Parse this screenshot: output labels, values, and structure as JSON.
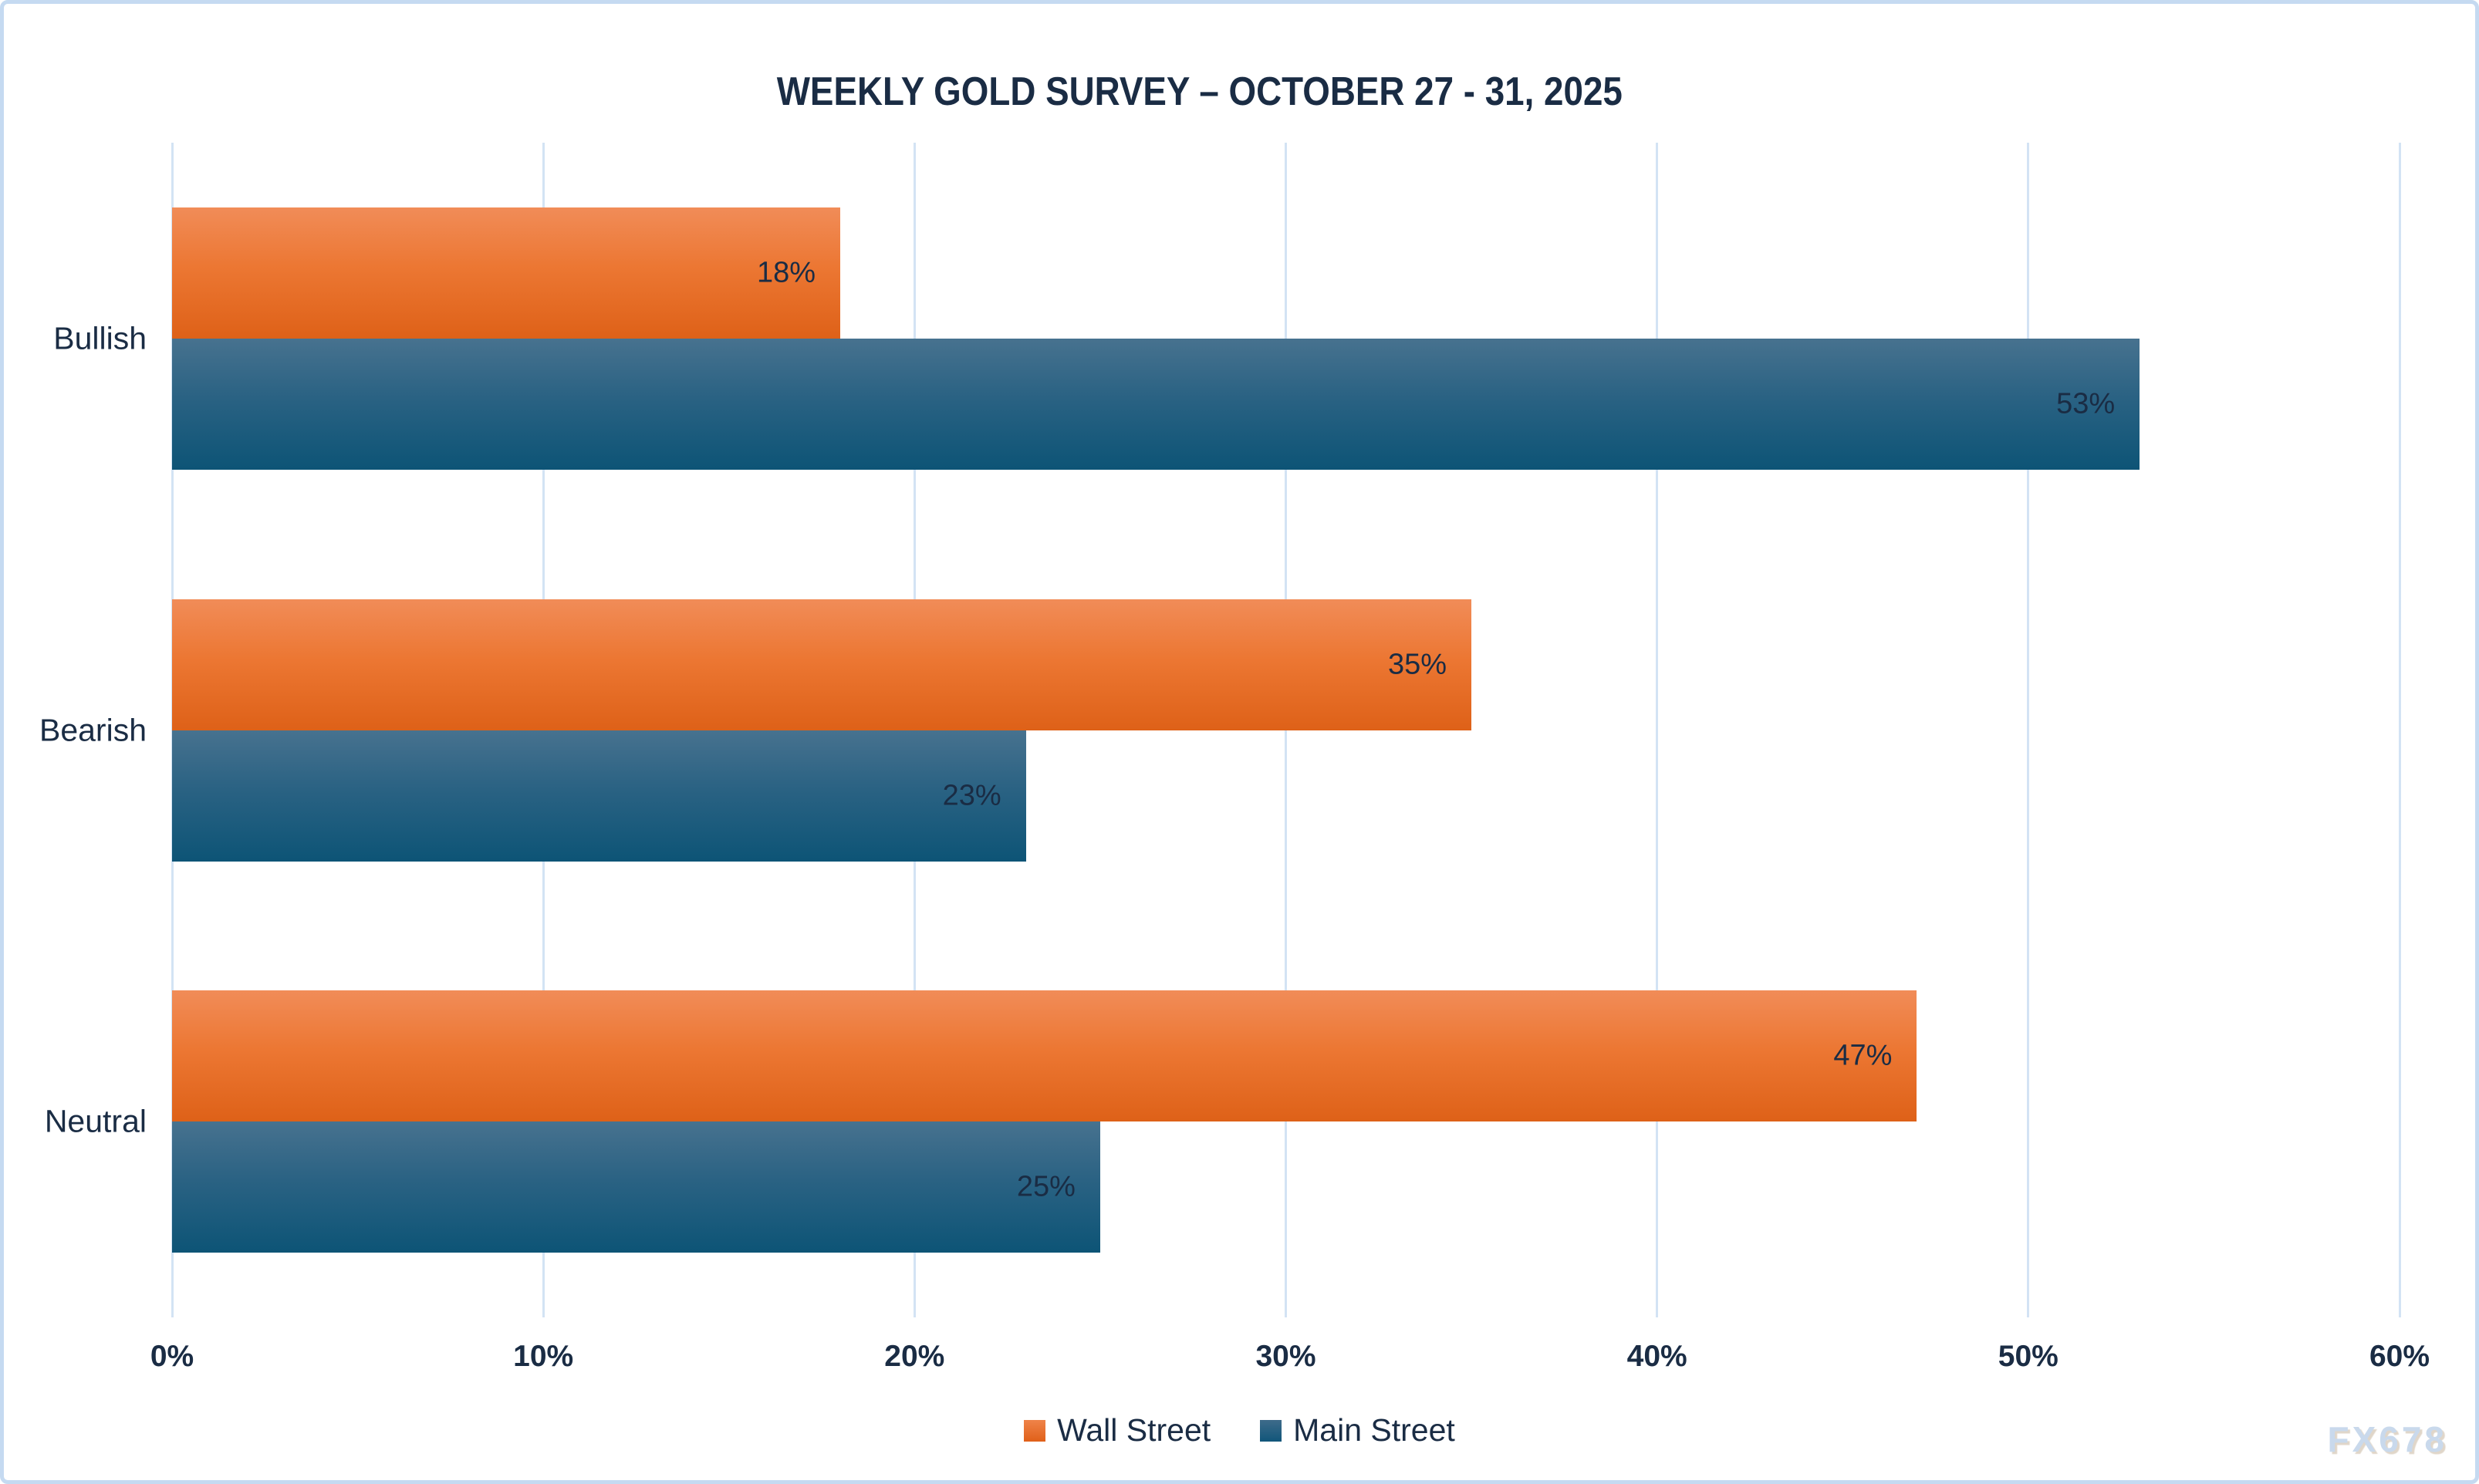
{
  "title": "WEEKLY GOLD SURVEY – OCTOBER 27 - 31, 2025",
  "watermark": "FX678",
  "colors": {
    "text_navy": "#1a2c44",
    "gridline": "#d3e3f4",
    "frame_border": "#c5daf1",
    "wall_street_top": "#f18c58",
    "wall_street_bottom": "#de6118",
    "main_street_top": "#47728f",
    "main_street_bottom": "#0d5476",
    "watermark_text": "#c9d9ec"
  },
  "chart_data": {
    "type": "bar",
    "orientation": "horizontal",
    "title": "WEEKLY GOLD SURVEY – OCTOBER 27 - 31, 2025",
    "categories": [
      "Bullish",
      "Bearish",
      "Neutral"
    ],
    "series": [
      {
        "name": "Wall Street",
        "values": [
          18,
          35,
          47
        ]
      },
      {
        "name": "Main Street",
        "values": [
          53,
          23,
          25
        ]
      }
    ],
    "data_labels": [
      [
        "18%",
        "35%",
        "47%"
      ],
      [
        "53%",
        "23%",
        "25%"
      ]
    ],
    "xlim": [
      0,
      60
    ],
    "x_ticks": [
      "0%",
      "10%",
      "20%",
      "30%",
      "40%",
      "50%",
      "60%"
    ],
    "grid": true,
    "legend_position": "bottom",
    "legend_labels": [
      "Wall Street",
      "Main Street"
    ]
  }
}
